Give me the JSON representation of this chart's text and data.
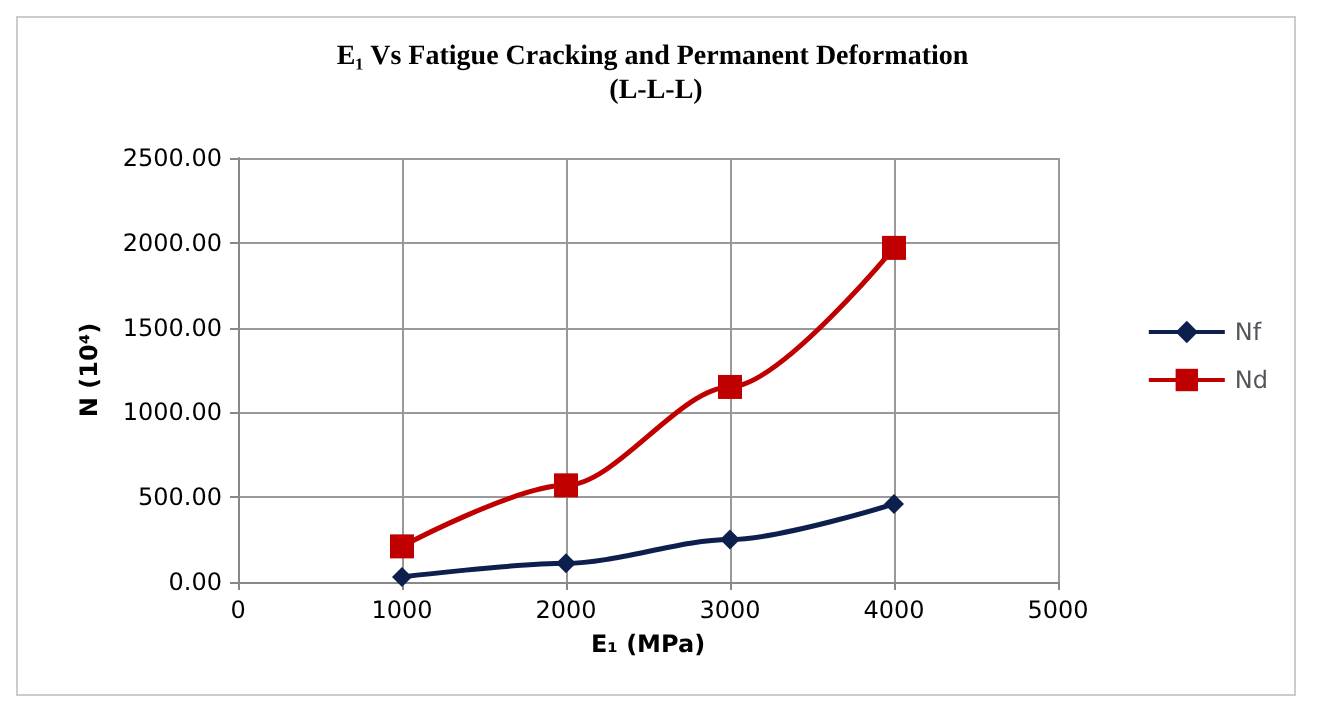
{
  "chart_data": {
    "type": "line",
    "title": "E₁ Vs Fatigue Cracking and Permanent Deformation (L-L-L)",
    "xlabel": "E₁ (MPa)",
    "ylabel": "N (10⁴)",
    "x": [
      1000,
      2000,
      3000,
      4000
    ],
    "series": [
      {
        "name": "Nf",
        "color": "#0d1f4d",
        "marker": "diamond",
        "values": [
          30,
          110,
          250,
          460
        ]
      },
      {
        "name": "Nd",
        "color": "#c00000",
        "marker": "square",
        "values": [
          210,
          570,
          1150,
          1970
        ]
      }
    ],
    "xlim": [
      0,
      5000
    ],
    "xticks": [
      0,
      1000,
      2000,
      3000,
      4000,
      5000
    ],
    "ylim": [
      0,
      2500
    ],
    "yticks": [
      {
        "value": 0,
        "label": "0.00"
      },
      {
        "value": 500,
        "label": "500.00"
      },
      {
        "value": 1000,
        "label": "1000.00"
      },
      {
        "value": 1500,
        "label": "1500.00"
      },
      {
        "value": 2000,
        "label": "2000.00"
      },
      {
        "value": 2500,
        "label": "2500.00"
      }
    ],
    "grid": true,
    "legend": "right",
    "line_style": "solid"
  }
}
